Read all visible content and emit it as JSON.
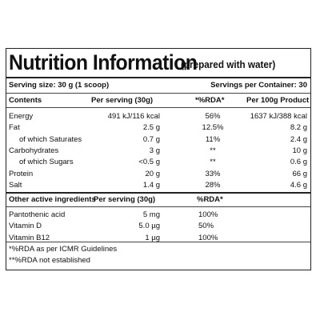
{
  "title": "Nutrition Information",
  "subtitle": "(prepared with water)",
  "serving_size": "Serving size: 30 g (1 scoop)",
  "servings_per_container": "Servings per Container: 30",
  "main_table": {
    "headers": [
      "Contents",
      "Per serving (30g)",
      "*%RDA*",
      "Per 100g Product"
    ],
    "rows": [
      {
        "name": "Energy",
        "per_serving": "491 kJ/116 kcal",
        "rda": "56%",
        "per_100g": "1637 kJ/388 kcal",
        "indent": false
      },
      {
        "name": "Fat",
        "per_serving": "2.5 g",
        "rda": "12.5%",
        "per_100g": "8.2 g",
        "indent": false
      },
      {
        "name": "of which Saturates",
        "per_serving": "0.7 g",
        "rda": "11%",
        "per_100g": "2.4 g",
        "indent": true
      },
      {
        "name": "Carbohydrates",
        "per_serving": "3 g",
        "rda": "**",
        "per_100g": "10 g",
        "indent": false
      },
      {
        "name": "of which Sugars",
        "per_serving": "<0.5 g",
        "rda": "**",
        "per_100g": "0.6 g",
        "indent": true
      },
      {
        "name": "Protein",
        "per_serving": "20 g",
        "rda": "33%",
        "per_100g": "66 g",
        "indent": false
      },
      {
        "name": "Salt",
        "per_serving": "1.4 g",
        "rda": "28%",
        "per_100g": "4.6 g",
        "indent": false
      }
    ]
  },
  "other_table": {
    "headers": [
      "Other active ingredients",
      "Per serving (30g)",
      "%RDA*"
    ],
    "rows": [
      {
        "name": "Pantothenic acid",
        "per_serving": "5 mg",
        "rda": "100%"
      },
      {
        "name": "Vitamin D",
        "per_serving": "5.0 µg",
        "rda": "50%"
      },
      {
        "name": "Vitamin B12",
        "per_serving": "1 µg",
        "rda": "100%"
      }
    ]
  },
  "footnotes": [
    "*%RDA as per ICMR Guidelines",
    "**%RDA not established"
  ]
}
